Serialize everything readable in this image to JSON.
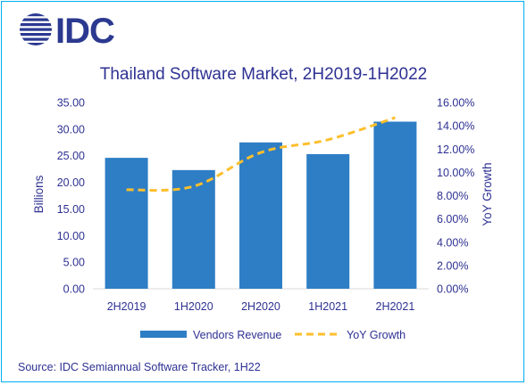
{
  "logo": {
    "text": "IDC",
    "color": "#2b3990"
  },
  "chart_data": {
    "type": "bar",
    "title": "Thailand Software Market, 2H2019-1H2022",
    "categories": [
      "2H2019",
      "1H2020",
      "2H2020",
      "1H2021",
      "2H2021"
    ],
    "series": [
      {
        "name": "Vendors Revenue",
        "type": "bar",
        "axis": "left",
        "color": "#2e7ec5",
        "values": [
          24.6,
          22.3,
          27.5,
          25.3,
          31.4
        ]
      },
      {
        "name": "YoY Growth",
        "type": "line",
        "axis": "right",
        "color": "#fdbf2d",
        "dashed": true,
        "values": [
          0.085,
          0.088,
          0.117,
          0.128,
          0.147
        ]
      }
    ],
    "ylabel": "Billions",
    "y2label": "YoY Growth",
    "ylim": [
      0,
      35
    ],
    "y2lim": [
      0,
      0.16
    ],
    "yticks": [
      "0.00",
      "5.00",
      "10.00",
      "15.00",
      "20.00",
      "25.00",
      "30.00",
      "35.00"
    ],
    "y2ticks": [
      "0.00%",
      "2.00%",
      "4.00%",
      "6.00%",
      "8.00%",
      "10.00%",
      "12.00%",
      "14.00%",
      "16.00%"
    ],
    "grid": false,
    "legend_position": "bottom",
    "text_color": "#2e3192"
  },
  "source": "Source: IDC Semiannual Software Tracker, 1H22",
  "border_color": "#00aeef"
}
